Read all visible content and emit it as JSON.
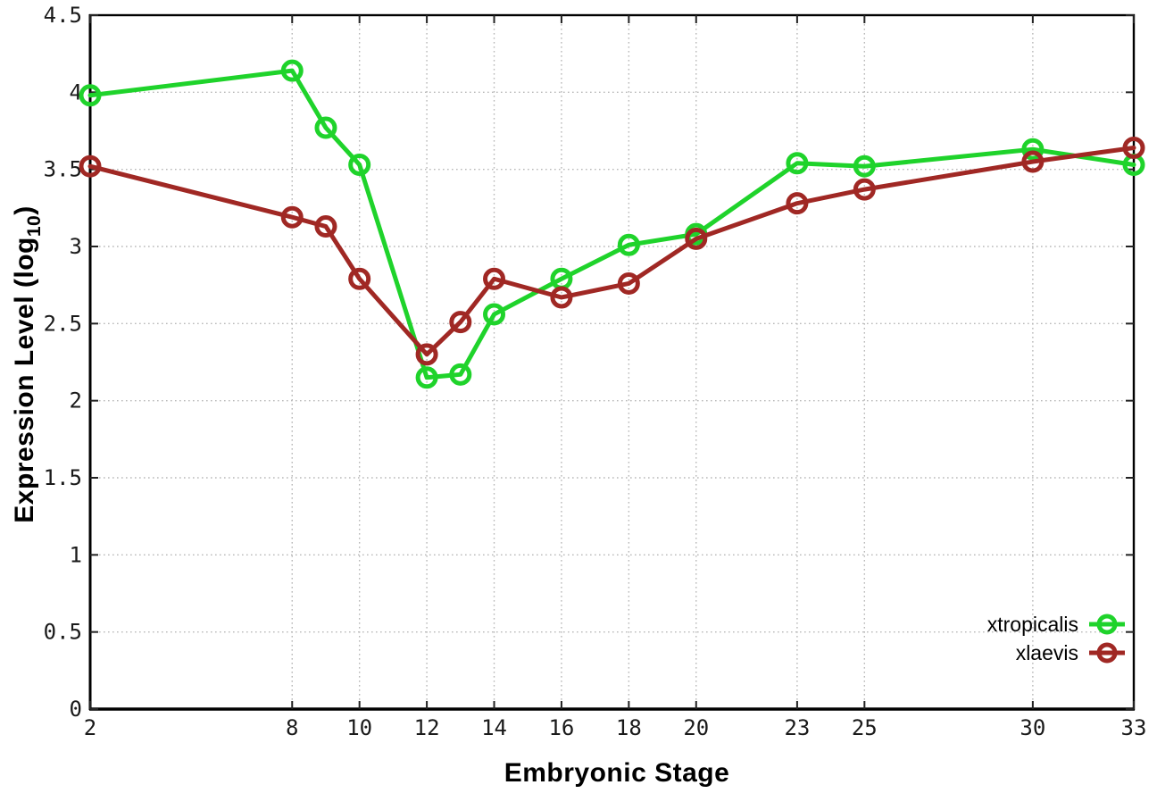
{
  "chart_data": {
    "type": "line",
    "title": "",
    "xlabel": "Embryonic Stage",
    "ylabel": {
      "main": "Expression Level (log",
      "sub": "10",
      "end": ")"
    },
    "x": [
      2,
      8,
      9,
      10,
      12,
      13,
      14,
      16,
      18,
      20,
      23,
      25,
      30,
      33
    ],
    "series": [
      {
        "name": "xtropicalis",
        "color": "#1fd32b",
        "values": [
          3.98,
          4.14,
          3.77,
          3.53,
          2.15,
          2.17,
          2.56,
          2.79,
          3.01,
          3.08,
          3.54,
          3.52,
          3.63,
          3.53
        ]
      },
      {
        "name": "xlaevis",
        "color": "#a02824",
        "values": [
          3.52,
          3.19,
          3.13,
          2.79,
          2.3,
          2.51,
          2.79,
          2.67,
          2.76,
          3.05,
          3.28,
          3.37,
          3.55,
          3.64
        ]
      }
    ],
    "xlim": [
      2,
      33
    ],
    "ylim": [
      0,
      4.5
    ],
    "x_ticks": [
      2,
      8,
      10,
      12,
      14,
      16,
      18,
      20,
      23,
      25,
      30,
      33
    ],
    "y_ticks": [
      0,
      0.5,
      1,
      1.5,
      2,
      2.5,
      3,
      3.5,
      4,
      4.5
    ],
    "grid": true,
    "legend_position": "bottom-right",
    "marker": "open-circle",
    "styles": {
      "grid_color": "#b8b8b8",
      "axis_color": "#000000",
      "tick_color": "#222222",
      "tick_label_color": "#1a1a1a",
      "line_width": 5,
      "marker_radius": 10
    }
  }
}
